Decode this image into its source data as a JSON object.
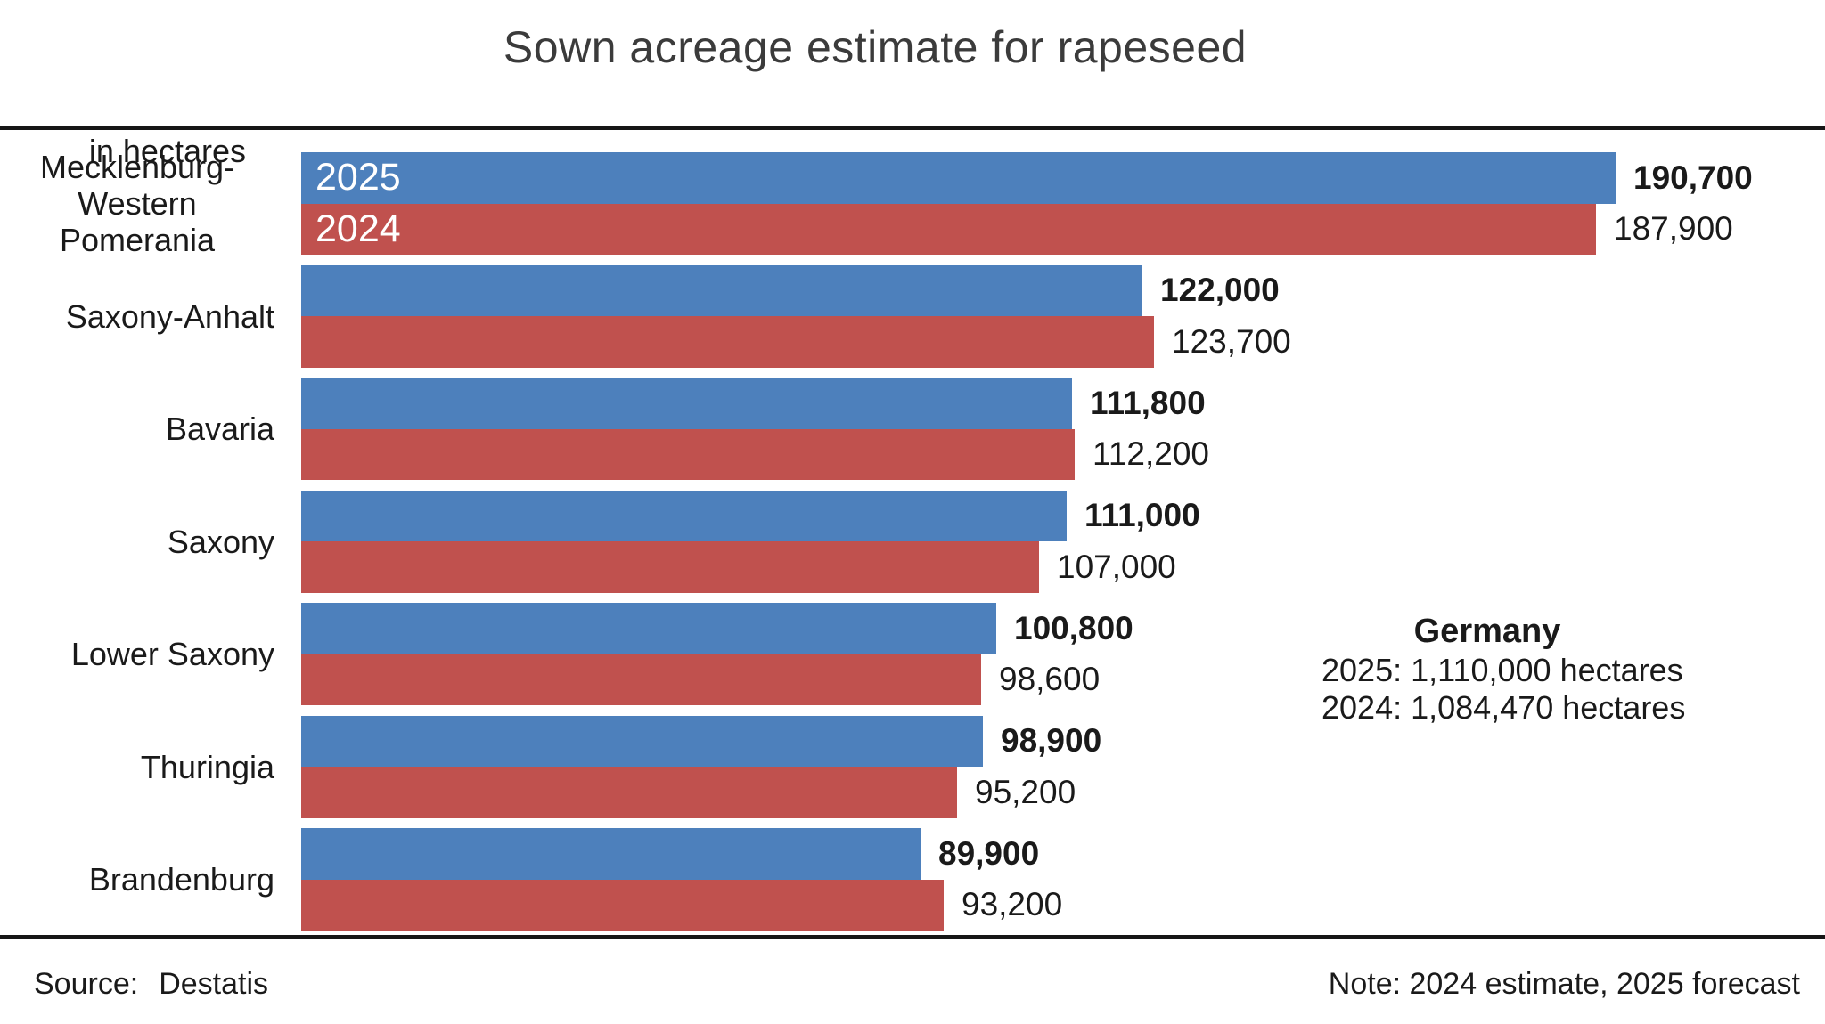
{
  "title": "Sown acreage estimate for rapeseed",
  "unit_label": "in hectares",
  "chart_data": {
    "type": "bar",
    "orientation": "horizontal",
    "grid": false,
    "axes_visible": false,
    "legend_position": "inside-first-bars",
    "categories": [
      "Mecklenburg-\nWestern Pomerania",
      "Saxony-Anhalt",
      "Bavaria",
      "Saxony",
      "Lower Saxony",
      "Thuringia",
      "Brandenburg"
    ],
    "xlim": [
      0,
      190700
    ],
    "series": [
      {
        "name": "2025",
        "color": "#4D80BC",
        "bold_value_labels": true,
        "values": [
          190700,
          122000,
          111800,
          111000,
          100800,
          98900,
          89900
        ],
        "value_labels": [
          "190,700",
          "122,000",
          "111,800",
          "111,000",
          "100,800",
          "98,900",
          "89,900"
        ]
      },
      {
        "name": "2024",
        "color": "#C0514E",
        "bold_value_labels": false,
        "values": [
          187900,
          123700,
          112200,
          107000,
          98600,
          95200,
          93200
        ],
        "value_labels": [
          "187,900",
          "123,700",
          "112,200",
          "107,000",
          "98,600",
          "95,200",
          "93,200"
        ]
      }
    ]
  },
  "annotation": {
    "title": "Germany",
    "lines": [
      "2025: 1,110,000 hectares",
      "2024: 1,084,470 hectares"
    ]
  },
  "footer": {
    "source_label": "Source:",
    "source_value": "Destatis",
    "note": "Note: 2024 estimate, 2025 forecast"
  },
  "colors": {
    "bar_2025": "#4D80BC",
    "bar_2024": "#C0514E",
    "rule": "#161616",
    "title_text": "#3b3b3b",
    "text": "#1a1a1a",
    "series_label_text": "#ffffff",
    "background": "#ffffff"
  }
}
